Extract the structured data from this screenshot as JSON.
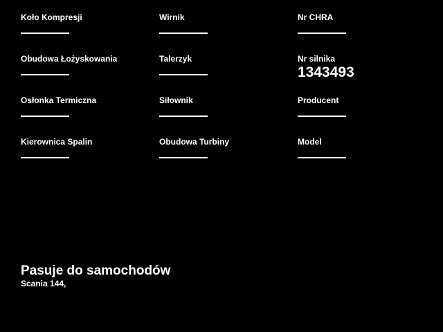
{
  "page": {
    "background": "#000000",
    "text_color": "#ffffff"
  },
  "fields": [
    {
      "label": "Koło Kompresji",
      "value": ""
    },
    {
      "label": "Wirnik",
      "value": ""
    },
    {
      "label": "Nr CHRA",
      "value": ""
    },
    {
      "label": "Obudowa Łożyskowania",
      "value": ""
    },
    {
      "label": "Talerzyk",
      "value": ""
    },
    {
      "label": "Nr silnika",
      "value": "1343493"
    },
    {
      "label": "Osłonka Termiczna",
      "value": ""
    },
    {
      "label": "Siłownik",
      "value": ""
    },
    {
      "label": "Producent",
      "value": ""
    },
    {
      "label": "Kierownica Spalin",
      "value": ""
    },
    {
      "label": "Obudowa Turbiny",
      "value": ""
    },
    {
      "label": "Model",
      "value": ""
    }
  ],
  "fits_section": {
    "heading": "Pasuje do samochodów",
    "cars": "Scania 144,"
  }
}
